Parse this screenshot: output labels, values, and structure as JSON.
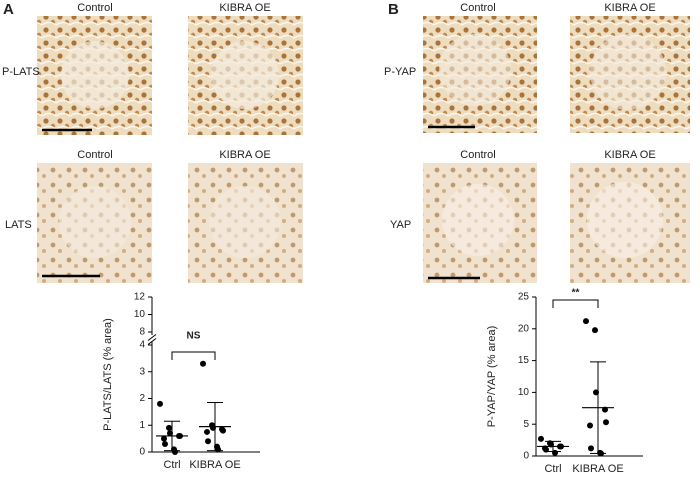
{
  "panels": [
    {
      "label": "A",
      "rows": [
        {
          "label": "P-LATS",
          "columns": [
            "Control",
            "KIBRA OE"
          ]
        },
        {
          "label": "LATS",
          "columns": [
            "Control",
            "KIBRA OE"
          ]
        }
      ]
    },
    {
      "label": "B",
      "rows": [
        {
          "label": "P-YAP",
          "columns": [
            "Control",
            "KIBRA OE"
          ]
        },
        {
          "label": "YAP",
          "columns": [
            "Control",
            "KIBRA OE"
          ]
        }
      ]
    }
  ],
  "chart_data": [
    {
      "type": "strip",
      "y_label": "P-LATS/LATS (% area)",
      "categories": [
        "Ctrl",
        "KIBRA OE"
      ],
      "annotation": "NS",
      "series": [
        {
          "name": "Ctrl",
          "values": [
            1.8,
            0.9,
            0.7,
            0.6,
            0.6,
            0.5,
            0.3,
            0.1,
            0.0
          ],
          "mean": 0.6,
          "sd": 0.55
        },
        {
          "name": "KIBRA OE",
          "values": [
            3.3,
            1.0,
            0.9,
            0.85,
            0.8,
            0.75,
            0.4,
            0.2,
            0.1
          ],
          "mean": 0.95,
          "sd": 0.9
        }
      ],
      "ylim": [
        0,
        12
      ],
      "ybreak": [
        4,
        8
      ],
      "yticks": [
        0,
        1,
        2,
        3,
        4,
        8,
        10,
        12
      ],
      "color": "#000000"
    },
    {
      "type": "strip",
      "y_label": "P-YAP/YAP (% area)",
      "categories": [
        "Ctrl",
        "KIBRA OE"
      ],
      "annotation": "**",
      "series": [
        {
          "name": "Ctrl",
          "values": [
            2.7,
            2.0,
            1.8,
            1.5,
            1.5,
            1.2,
            1.0,
            0.5
          ],
          "mean": 1.5,
          "sd": 0.8
        },
        {
          "name": "KIBRA OE",
          "values": [
            21.2,
            19.8,
            10.0,
            7.3,
            5.3,
            4.8,
            1.2,
            0.5,
            0.4
          ],
          "mean": 7.6,
          "sd": 7.2
        }
      ],
      "ylim": [
        0,
        25
      ],
      "yticks": [
        0,
        5,
        10,
        15,
        20,
        25
      ],
      "color": "#000000"
    }
  ]
}
